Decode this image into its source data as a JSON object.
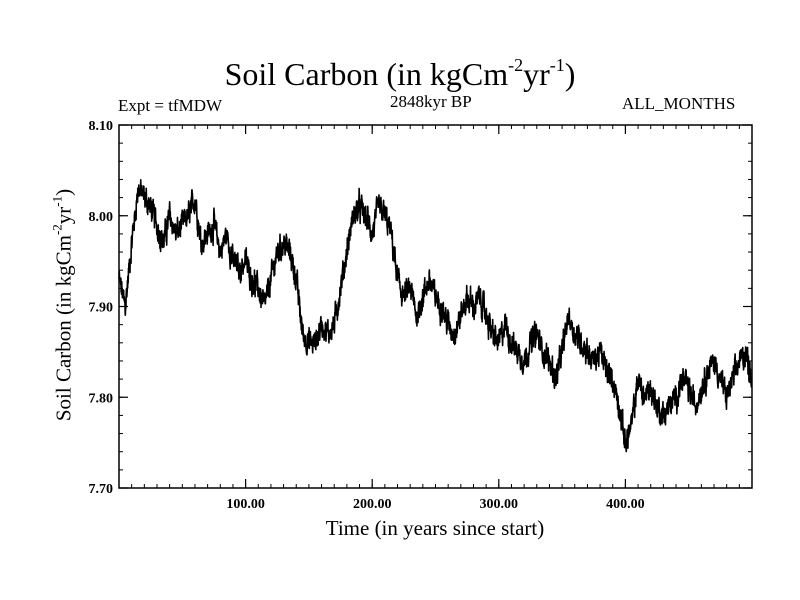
{
  "header": {
    "title_main": "Soil Carbon (in kgCm",
    "title_exp1": "-2",
    "title_mid": "yr",
    "title_exp2": "-1",
    "title_end": ")",
    "expt": "Expt = tfMDW",
    "period": "2848kyr BP",
    "months": "ALL_MONTHS"
  },
  "axes": {
    "xlabel": "Time (in years since start)",
    "ylabel_main": "Soil Carbon (in kgCm",
    "ylabel_exp1": "-2",
    "ylabel_mid": "yr",
    "ylabel_exp2": "-1",
    "ylabel_end": ")"
  },
  "chart_data": {
    "type": "line",
    "title": "Soil Carbon (in kgCm-2yr-1)",
    "xlabel": "Time (in years since start)",
    "ylabel": "Soil Carbon (in kgCm-2yr-1)",
    "xlim": [
      0,
      500
    ],
    "ylim": [
      7.7,
      8.1
    ],
    "x_ticks": [
      100,
      200,
      300,
      400
    ],
    "x_tick_labels": [
      "100.00",
      "200.00",
      "300.00",
      "400.00"
    ],
    "y_ticks": [
      7.7,
      7.8,
      7.9,
      8.0,
      8.1
    ],
    "y_tick_labels": [
      "7.70",
      "7.80",
      "7.90",
      "8.00",
      "8.10"
    ],
    "series": [
      {
        "name": "Soil Carbon",
        "color": "#000000",
        "x": [
          0,
          5,
          10,
          15,
          20,
          25,
          30,
          35,
          40,
          45,
          50,
          55,
          60,
          65,
          70,
          75,
          80,
          85,
          90,
          95,
          100,
          105,
          110,
          115,
          120,
          125,
          130,
          135,
          140,
          145,
          150,
          155,
          160,
          165,
          170,
          175,
          180,
          185,
          190,
          195,
          200,
          205,
          210,
          215,
          220,
          225,
          230,
          235,
          240,
          245,
          250,
          255,
          260,
          265,
          270,
          275,
          280,
          285,
          290,
          295,
          300,
          305,
          310,
          315,
          320,
          325,
          330,
          335,
          340,
          345,
          350,
          355,
          360,
          365,
          370,
          375,
          380,
          385,
          390,
          395,
          400,
          405,
          410,
          415,
          420,
          425,
          430,
          435,
          440,
          445,
          450,
          455,
          460,
          465,
          470,
          475,
          480,
          485,
          490,
          495,
          500
        ],
        "values": [
          7.93,
          7.9,
          7.97,
          8.03,
          8.02,
          8.01,
          7.99,
          7.97,
          8.0,
          7.98,
          7.99,
          8.0,
          8.02,
          7.97,
          7.98,
          7.99,
          7.96,
          7.98,
          7.95,
          7.94,
          7.95,
          7.93,
          7.92,
          7.9,
          7.93,
          7.96,
          7.97,
          7.96,
          7.93,
          7.87,
          7.86,
          7.86,
          7.88,
          7.87,
          7.88,
          7.92,
          7.96,
          8.0,
          8.01,
          8.0,
          7.98,
          8.01,
          8.0,
          7.98,
          7.93,
          7.91,
          7.92,
          7.89,
          7.91,
          7.93,
          7.91,
          7.9,
          7.88,
          7.87,
          7.89,
          7.91,
          7.9,
          7.91,
          7.89,
          7.87,
          7.86,
          7.88,
          7.86,
          7.85,
          7.84,
          7.86,
          7.87,
          7.85,
          7.84,
          7.82,
          7.85,
          7.89,
          7.87,
          7.86,
          7.85,
          7.84,
          7.85,
          7.83,
          7.82,
          7.79,
          7.75,
          7.77,
          7.82,
          7.8,
          7.81,
          7.79,
          7.78,
          7.79,
          7.8,
          7.82,
          7.81,
          7.79,
          7.81,
          7.83,
          7.84,
          7.82,
          7.8,
          7.82,
          7.84,
          7.85,
          7.82
        ]
      }
    ]
  }
}
